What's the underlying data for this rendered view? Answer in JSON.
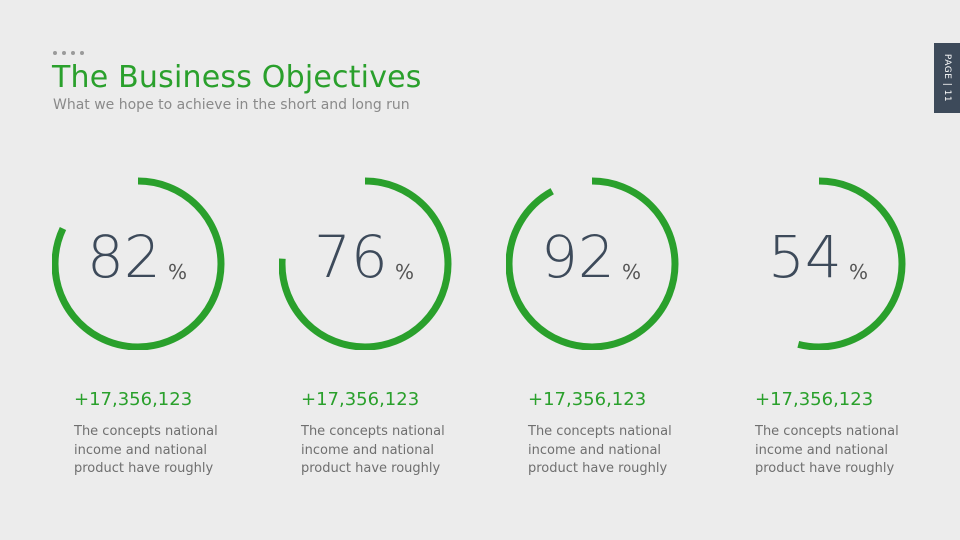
{
  "header": {
    "title": "The Business Objectives",
    "subtitle": "What we hope to achieve in the short and long run"
  },
  "page_tab": {
    "label": "PAGE | 11"
  },
  "accent_color": "#2aa02c",
  "cards": [
    {
      "percent": "82",
      "percent_sign": "%",
      "delta": "+17,356,123",
      "description": "The concepts national income and national product have roughly"
    },
    {
      "percent": "76",
      "percent_sign": "%",
      "delta": "+17,356,123",
      "description": "The concepts national income and national product have roughly"
    },
    {
      "percent": "92",
      "percent_sign": "%",
      "delta": "+17,356,123",
      "description": "The concepts national income and national product have roughly"
    },
    {
      "percent": "54",
      "percent_sign": "%",
      "delta": "+17,356,123",
      "description": "The concepts national income and national product have roughly"
    }
  ]
}
